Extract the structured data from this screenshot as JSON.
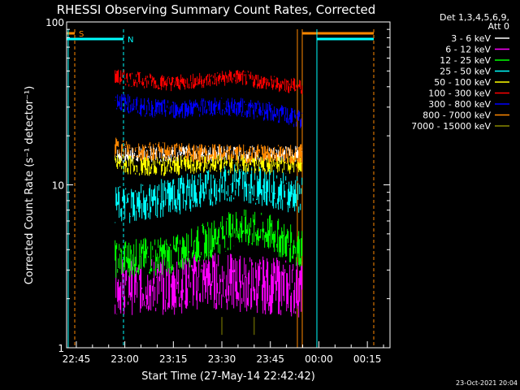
{
  "chart_data": {
    "type": "line",
    "title": "RHESSI Observing Summary Count Rates, Corrected",
    "xlabel": "Start Time (27-May-14 22:42:42)",
    "ylabel": "Corrected Count Rate (s⁻¹ detector⁻¹)",
    "y_scale": "log",
    "ylim": [
      1,
      100
    ],
    "xlim": [
      "22:42",
      "00:22"
    ],
    "x_ticks": [
      "22:45",
      "23:00",
      "23:15",
      "23:30",
      "23:45",
      "00:00",
      "00:15"
    ],
    "y_ticks": [
      "1",
      "10",
      "100"
    ],
    "legend_header": [
      "Det 1,3,4,5,6,9,",
      "Att 0"
    ],
    "legend_position": "right",
    "footer": "23-Oct-2021 20:04",
    "series": [
      {
        "name": "3 - 6 keV",
        "color": "#ffffff",
        "x": [
          "22:57",
          "23:05",
          "23:15",
          "23:25",
          "23:35",
          "23:45",
          "23:55"
        ],
        "y": [
          15,
          15.5,
          15.5,
          15.5,
          15.5,
          15.5,
          15.5
        ]
      },
      {
        "name": "6 - 12 keV",
        "color": "#ff00ff",
        "x": [
          "22:57",
          "23:05",
          "23:15",
          "23:25",
          "23:35",
          "23:45",
          "23:55"
        ],
        "y": [
          2.4,
          2.4,
          2.4,
          2.6,
          2.5,
          2.4,
          2.3
        ]
      },
      {
        "name": "12 - 25 keV",
        "color": "#00ff00",
        "x": [
          "22:57",
          "23:05",
          "23:15",
          "23:25",
          "23:35",
          "23:45",
          "23:55"
        ],
        "y": [
          3.5,
          3.6,
          3.7,
          4.5,
          5.5,
          5.0,
          4.0
        ]
      },
      {
        "name": "25 - 50 keV",
        "color": "#00ffff",
        "x": [
          "22:57",
          "23:05",
          "23:15",
          "23:25",
          "23:35",
          "23:45",
          "23:55"
        ],
        "y": [
          7.5,
          7.8,
          8.5,
          9.5,
          10.5,
          9.5,
          8.5
        ]
      },
      {
        "name": "50 - 100 keV",
        "color": "#ffff00",
        "x": [
          "22:57",
          "23:05",
          "23:15",
          "23:25",
          "23:35",
          "23:45",
          "23:55"
        ],
        "y": [
          13.5,
          13,
          13,
          13.5,
          13.5,
          13.2,
          13.5
        ]
      },
      {
        "name": "100 - 300 keV",
        "color": "#ff0000",
        "x": [
          "22:57",
          "23:05",
          "23:15",
          "23:25",
          "23:35",
          "23:45",
          "23:55"
        ],
        "y": [
          46,
          44,
          42,
          44,
          46,
          42,
          40
        ]
      },
      {
        "name": "300 - 800 keV",
        "color": "#0000ff",
        "x": [
          "22:57",
          "23:05",
          "23:15",
          "23:25",
          "23:35",
          "23:45",
          "23:55"
        ],
        "y": [
          33,
          30,
          29,
          30,
          30,
          28,
          25
        ]
      },
      {
        "name": "800 - 7000 keV",
        "color": "#ff8800",
        "x": [
          "22:57",
          "23:05",
          "23:15",
          "23:25",
          "23:35",
          "23:45",
          "23:55"
        ],
        "y": [
          17,
          16,
          16,
          15.5,
          15.5,
          15.5,
          15.5
        ]
      },
      {
        "name": "7000 - 15000 keV",
        "color": "#888800",
        "x": [
          "23:30",
          "23:40"
        ],
        "y": [
          1.2,
          1.2
        ]
      }
    ],
    "flags": [
      {
        "label": "S",
        "color": "#ff8800"
      },
      {
        "label": "N",
        "color": "#00ffff"
      }
    ]
  }
}
